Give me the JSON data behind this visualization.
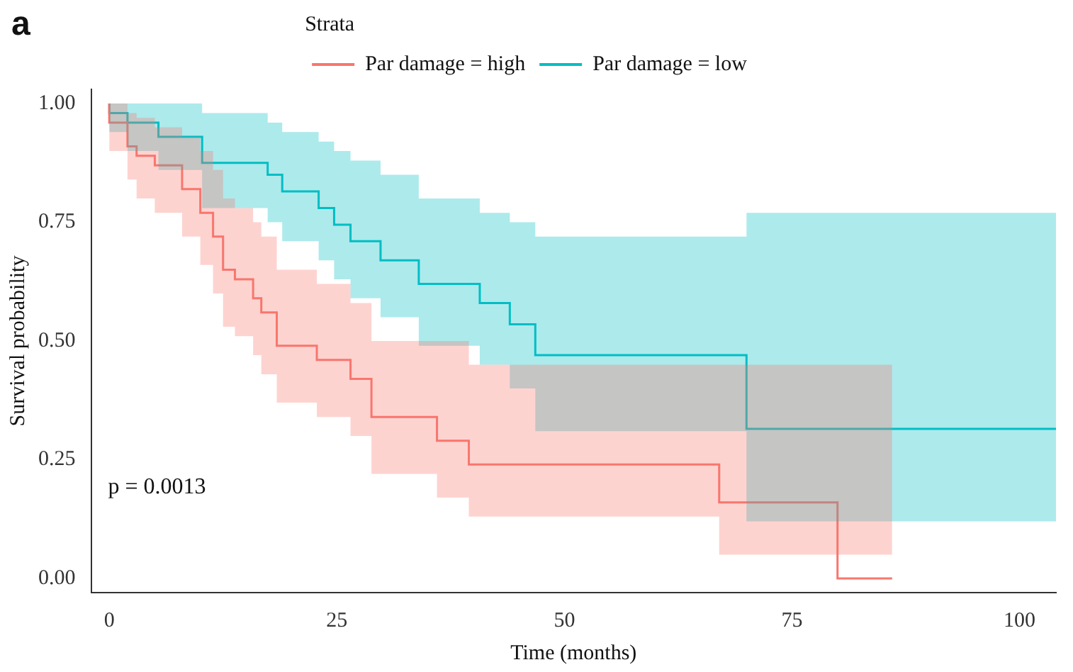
{
  "chart_data": {
    "type": "step",
    "title": "a",
    "legend_title": "Strata",
    "xlabel": "Time (months)",
    "ylabel": "Survival probability",
    "xlim": [
      -2,
      104
    ],
    "ylim": [
      -0.03,
      1.03
    ],
    "xticks": [
      0,
      25,
      50,
      75,
      100
    ],
    "yticks": [
      {
        "value": 0,
        "label": "0.00"
      },
      {
        "value": 0.25,
        "label": "0.25"
      },
      {
        "value": 0.5,
        "label": "0.50"
      },
      {
        "value": 0.75,
        "label": "0.75"
      },
      {
        "value": 1,
        "label": "1.00"
      }
    ],
    "grid": false,
    "legend": "top",
    "annotations": [
      "p = 0.0013"
    ],
    "series": [
      {
        "name": "Par damage = high",
        "color": "#f8766d",
        "x": [
          0,
          2,
          3,
          5,
          8,
          10,
          11.4,
          12.5,
          13.8,
          15.8,
          16.7,
          18.4,
          22.8,
          26.5,
          28.8,
          36,
          39.5,
          67,
          80,
          86
        ],
        "values": [
          1,
          0.96,
          0.91,
          0.89,
          0.87,
          0.82,
          0.77,
          0.72,
          0.65,
          0.63,
          0.59,
          0.56,
          0.49,
          0.46,
          0.42,
          0.34,
          0.29,
          0.24,
          0.16,
          0
        ],
        "lower": [
          1,
          0.9,
          0.84,
          0.8,
          0.77,
          0.72,
          0.66,
          0.6,
          0.53,
          0.51,
          0.47,
          0.43,
          0.37,
          0.34,
          0.3,
          0.22,
          0.17,
          0.13,
          0.05,
          0.05
        ],
        "upper": [
          1,
          1,
          0.98,
          0.97,
          0.95,
          0.93,
          0.9,
          0.86,
          0.8,
          0.78,
          0.75,
          0.72,
          0.65,
          0.62,
          0.58,
          0.5,
          0.5,
          0.45,
          0.45,
          0.45
        ]
      },
      {
        "name": "Par damage = low",
        "color": "#00bfc4",
        "x": [
          0,
          2,
          5.4,
          10.2,
          17.4,
          19,
          23,
          24.7,
          26.5,
          29.8,
          34,
          40.7,
          44,
          46.8,
          70,
          85.7,
          104
        ],
        "values": [
          1,
          0.98,
          0.96,
          0.93,
          0.875,
          0.85,
          0.815,
          0.78,
          0.745,
          0.71,
          0.67,
          0.62,
          0.58,
          0.535,
          0.47,
          0.315,
          0.315
        ],
        "lower": [
          1,
          0.94,
          0.9,
          0.86,
          0.78,
          0.75,
          0.71,
          0.67,
          0.63,
          0.59,
          0.55,
          0.49,
          0.45,
          0.4,
          0.31,
          0.12,
          0.12
        ],
        "upper": [
          1,
          1,
          1,
          1,
          0.98,
          0.96,
          0.94,
          0.92,
          0.9,
          0.88,
          0.85,
          0.8,
          0.77,
          0.75,
          0.72,
          0.77,
          0.77
        ]
      }
    ]
  }
}
